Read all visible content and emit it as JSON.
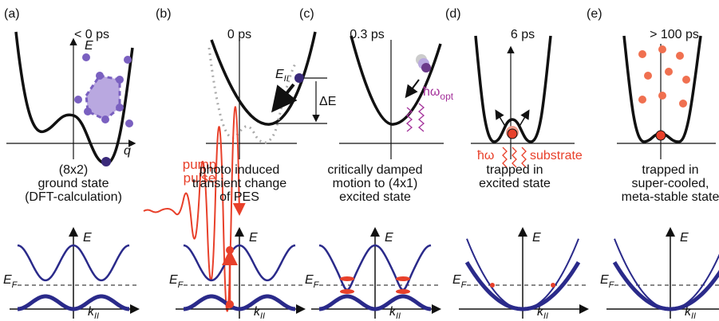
{
  "panels": [
    {
      "label": "(a)",
      "time": "< 0 ps",
      "caption": [
        "(8x2)",
        "ground state",
        "(DFT-calculation)"
      ]
    },
    {
      "label": "(b)",
      "time": "0 ps",
      "caption": [
        "photo induced",
        "transient change",
        "of PES"
      ]
    },
    {
      "label": "(c)",
      "time": "0.3 ps",
      "caption": [
        "critically damped",
        "motion to (4x1)",
        "excited state"
      ]
    },
    {
      "label": "(d)",
      "time": "6 ps",
      "caption": [
        "trapped in",
        "excited state"
      ]
    },
    {
      "label": "(e)",
      "time": "> 100 ps",
      "caption": [
        "trapped in",
        "super-cooled,",
        "meta-stable state"
      ]
    }
  ],
  "axes": {
    "energy": "E",
    "coordinate": "q",
    "fermi": {
      "main": "E",
      "sub": "F"
    },
    "momentum": {
      "main": "k",
      "sub": "II"
    }
  },
  "pump": [
    "pump",
    "pulse"
  ],
  "annotations": {
    "field": {
      "main": "E",
      "sub": "II"
    },
    "delta_e": "ΔE",
    "optical": {
      "main": "ħω",
      "sub": "opt"
    },
    "phonon": "ħω",
    "substrate": "substrate"
  }
}
